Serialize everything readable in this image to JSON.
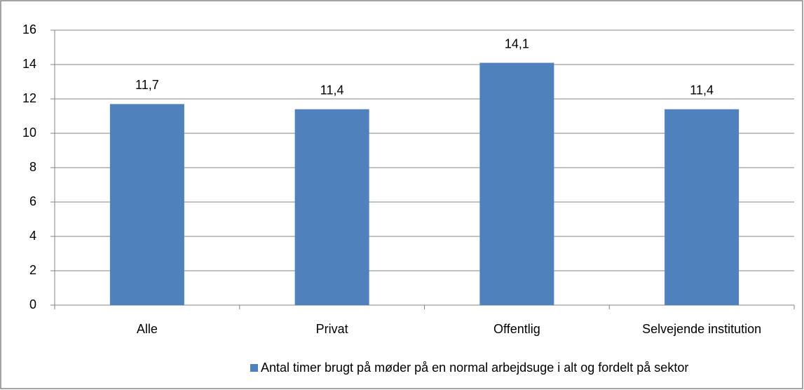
{
  "chart_data": {
    "type": "bar",
    "categories": [
      "Alle",
      "Privat",
      "Offentlig",
      "Selvejende institution"
    ],
    "series": [
      {
        "name": "Antal timer brugt på møder på en normal arbejdsuge i alt og fordelt på sektor",
        "color": "#4f81bd",
        "values": [
          11.7,
          11.4,
          14.1,
          11.4
        ],
        "value_labels": [
          "11,7",
          "11,4",
          "14,1",
          "11,4"
        ]
      }
    ],
    "ylim": [
      0,
      16
    ],
    "yticks": [
      0,
      2,
      4,
      6,
      8,
      10,
      12,
      14,
      16
    ],
    "grid": true,
    "legend": "bottom"
  }
}
